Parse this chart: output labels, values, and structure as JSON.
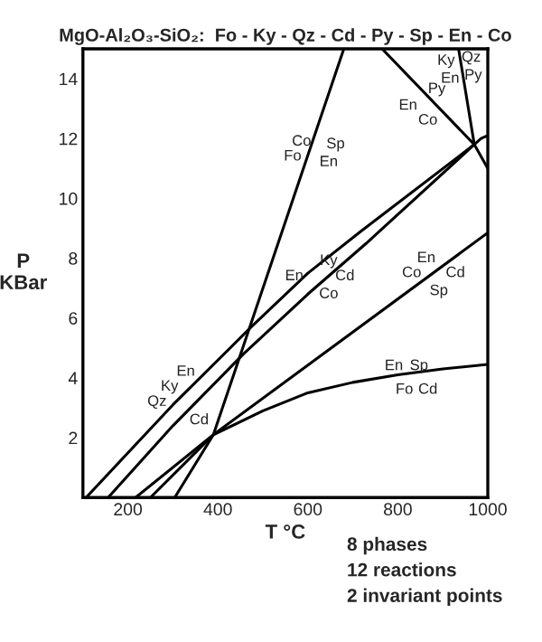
{
  "chart_data": {
    "type": "line",
    "title": "MgO-Al₂O₃-SiO₂:  Fo - Ky - Qz - Cd - Py - Sp - En - Co",
    "xlabel": "T °C",
    "ylabel": "P\nKBar",
    "xlim": [
      100,
      1000
    ],
    "ylim": [
      0,
      15
    ],
    "xticks": [
      200,
      400,
      600,
      800,
      1000
    ],
    "yticks": [
      2,
      4,
      6,
      8,
      10,
      12,
      14
    ],
    "grid": false,
    "legend": false,
    "marker": "none",
    "line_style": "solid",
    "series": [
      {
        "color": "#000000",
        "x": [
          304,
          390,
          680
        ],
        "values": [
          0,
          2.1,
          15
        ]
      },
      {
        "color": "#000000",
        "x": [
          107,
          300,
          474,
          600,
          718,
          970,
          985,
          1000
        ],
        "values": [
          0,
          3.1,
          5.7,
          7.5,
          8.9,
          11.8,
          12.0,
          12.1
        ]
      },
      {
        "color": "#000000",
        "x": [
          156,
          300,
          457,
          600,
          730,
          970
        ],
        "values": [
          0,
          2.4,
          4.8,
          6.8,
          8.5,
          11.8
        ]
      },
      {
        "color": "#000000",
        "x": [
          217,
          390,
          1000
        ],
        "values": [
          0,
          2.1,
          8.85
        ]
      },
      {
        "color": "#000000",
        "x": [
          250,
          390,
          500,
          600,
          700,
          800,
          900,
          1000
        ],
        "values": [
          0,
          2.1,
          2.9,
          3.5,
          3.85,
          4.1,
          4.3,
          4.45
        ]
      },
      {
        "color": "#000000",
        "x": [
          765,
          970,
          1000
        ],
        "values": [
          15,
          11.8,
          11.0
        ]
      },
      {
        "color": "#000000",
        "x": [
          935,
          970
        ],
        "values": [
          15,
          11.8
        ]
      }
    ],
    "annotations": [
      "Co",
      "Fo",
      "Sp",
      "En",
      "Ky",
      "Qz",
      "En",
      "Py",
      "Py",
      "En",
      "Co",
      "Ky",
      "En",
      "Cd",
      "Co",
      "En",
      "Co",
      "Cd",
      "Sp",
      "En",
      "Ky",
      "Qz",
      "Cd",
      "En",
      "Sp",
      "Fo",
      "Cd",
      "8 phases",
      "12 reactions",
      "2 invariant points"
    ]
  }
}
